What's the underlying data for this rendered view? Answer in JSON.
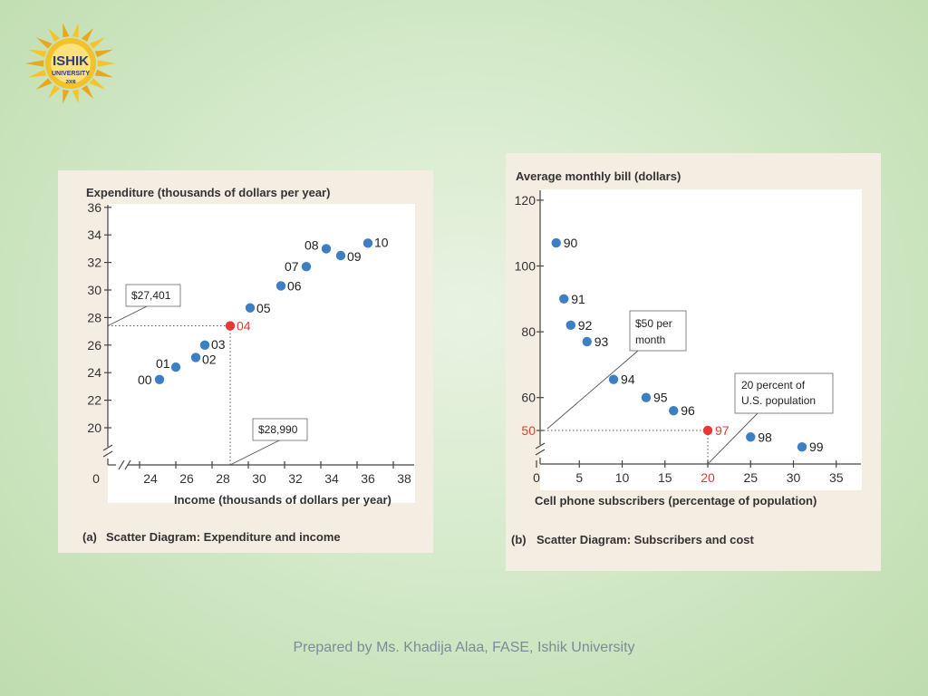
{
  "logo": {
    "name": "ISHIK",
    "subtitle": "UNIVERSITY",
    "year": "2008"
  },
  "footer": "Prepared by Ms. Khadija Alaa, FASE, Ishik University",
  "colors": {
    "point": "#3d7fc4",
    "highlight": "#e53935",
    "highlight_text": "#e53935"
  },
  "chart_data": [
    {
      "type": "scatter",
      "ylabel": "Expenditure (thousands of dollars per year)",
      "xlabel": "Income (thousands of dollars per year)",
      "caption_letter": "(a)",
      "caption": "Scatter Diagram: Expenditure and income",
      "xlim": [
        23,
        39
      ],
      "ylim": [
        19,
        37
      ],
      "x_ticks": [
        24,
        26,
        28,
        30,
        32,
        34,
        36,
        38
      ],
      "y_ticks": [
        20,
        22,
        24,
        26,
        28,
        30,
        32,
        34,
        36
      ],
      "origin_label": "0",
      "points": [
        {
          "label": "00",
          "x": 25.1,
          "y": 23.5
        },
        {
          "label": "01",
          "x": 26.0,
          "y": 24.4
        },
        {
          "label": "02",
          "x": 27.1,
          "y": 25.1
        },
        {
          "label": "03",
          "x": 27.6,
          "y": 26.0
        },
        {
          "label": "04",
          "x": 29.0,
          "y": 27.4,
          "highlight": true
        },
        {
          "label": "05",
          "x": 30.1,
          "y": 28.7
        },
        {
          "label": "06",
          "x": 31.8,
          "y": 30.3
        },
        {
          "label": "07",
          "x": 33.2,
          "y": 31.7
        },
        {
          "label": "08",
          "x": 34.3,
          "y": 33.0
        },
        {
          "label": "09",
          "x": 35.1,
          "y": 32.5
        },
        {
          "label": "10",
          "x": 36.6,
          "y": 33.4
        }
      ],
      "callouts": [
        {
          "label": "$27,401"
        },
        {
          "label": "$28,990"
        }
      ]
    },
    {
      "type": "scatter",
      "ylabel": "Average monthly bill (dollars)",
      "xlabel": "Cell phone subscribers (percentage of population)",
      "caption_letter": "(b)",
      "caption": "Scatter Diagram:  Subscribers and cost",
      "xlim": [
        0,
        36
      ],
      "ylim": [
        40,
        123
      ],
      "x_ticks": [
        0,
        5,
        10,
        15,
        20,
        25,
        30,
        35
      ],
      "x_tick_labels": [
        "0",
        "5",
        "10",
        "15",
        "20",
        "25",
        "30",
        "35"
      ],
      "y_ticks": [
        50,
        60,
        80,
        100,
        120
      ],
      "y_tick_labels": [
        "50",
        "60",
        "80",
        "100",
        "120"
      ],
      "highlight_x_tick": "20",
      "highlight_y_tick": "50",
      "points": [
        {
          "label": "90",
          "x": 2.3,
          "y": 107
        },
        {
          "label": "91",
          "x": 3.2,
          "y": 90
        },
        {
          "label": "92",
          "x": 4.0,
          "y": 82
        },
        {
          "label": "93",
          "x": 5.9,
          "y": 77
        },
        {
          "label": "94",
          "x": 9.0,
          "y": 65.5
        },
        {
          "label": "95",
          "x": 12.8,
          "y": 60
        },
        {
          "label": "96",
          "x": 16.0,
          "y": 56
        },
        {
          "label": "97",
          "x": 20.0,
          "y": 50,
          "highlight": true
        },
        {
          "label": "98",
          "x": 25.0,
          "y": 48
        },
        {
          "label": "99",
          "x": 31.0,
          "y": 45
        }
      ],
      "callouts": [
        {
          "line1": "$50 per",
          "line2": "month"
        },
        {
          "line1": "20 percent of",
          "line2": "U.S. population"
        }
      ]
    }
  ]
}
